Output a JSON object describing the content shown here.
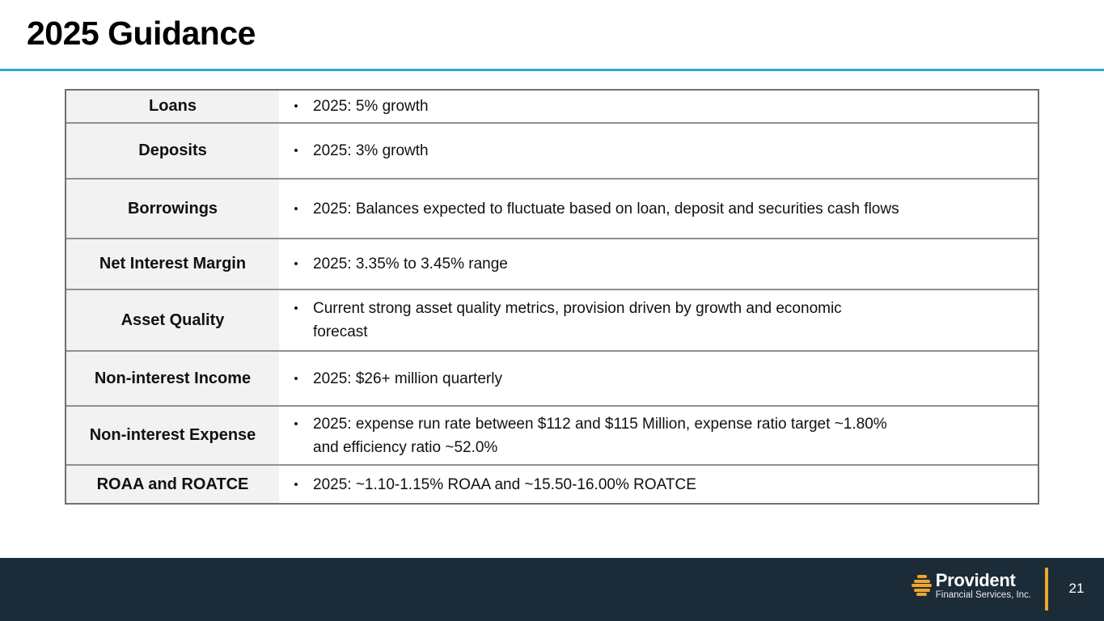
{
  "slide": {
    "title": "2025 Guidance"
  },
  "table": {
    "bullet_char": "•",
    "rows": [
      {
        "label": "Loans",
        "bullets": [
          "2025: 5% growth"
        ]
      },
      {
        "label": "Deposits",
        "bullets": [
          "2025: 3% growth"
        ]
      },
      {
        "label": "Borrowings",
        "bullets": [
          "2025: Balances expected to fluctuate based on loan, deposit and securities cash flows"
        ]
      },
      {
        "label": "Net Interest Margin",
        "bullets": [
          "2025: 3.35% to 3.45% range"
        ]
      },
      {
        "label": "Asset Quality",
        "bullets": [
          "Current strong asset quality metrics, provision driven by growth and economic\nforecast"
        ]
      },
      {
        "label": "Non-interest Income",
        "bullets": [
          "2025: $26+ million quarterly"
        ]
      },
      {
        "label": "Non-interest Expense",
        "bullets": [
          "2025: expense run rate between $112 and $115 Million, expense ratio target ~1.80%\nand efficiency ratio ~52.0%"
        ]
      },
      {
        "label": "ROAA and ROATCE",
        "bullets": [
          "2025: ~1.10-1.15% ROAA and ~15.50-16.00% ROATCE"
        ]
      }
    ]
  },
  "footer": {
    "brand_name": "Provident",
    "brand_subtitle": "Financial Services, Inc.",
    "page_number": "21"
  },
  "colors": {
    "accent_blue": "#29A8DC",
    "footer_navy": "#1C2B38",
    "logo_amber": "#F0A52E",
    "row_label_background": "#F2F2F2",
    "table_border": "#6F6F6F"
  }
}
